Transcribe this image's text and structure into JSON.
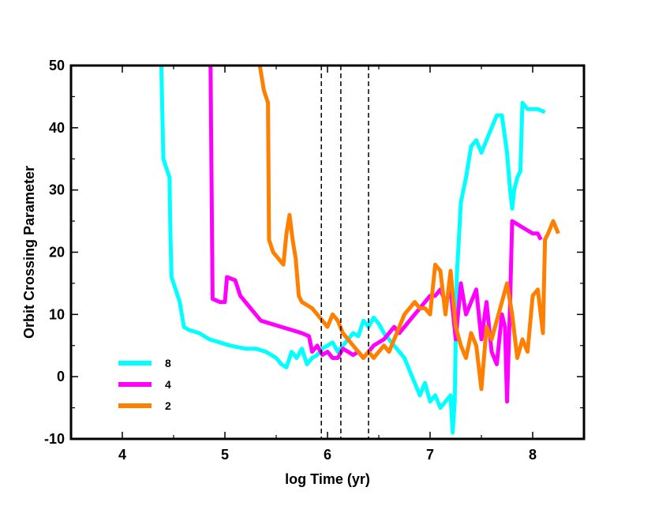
{
  "chart_data": {
    "type": "line",
    "title": "",
    "xlabel": "log Time (yr)",
    "ylabel": "Orbit Crossing Parameter",
    "xlim": [
      3.5,
      8.5
    ],
    "ylim": [
      -10,
      50
    ],
    "x_ticks": [
      4,
      5,
      6,
      7,
      8
    ],
    "y_ticks": [
      -10,
      0,
      10,
      20,
      30,
      40,
      50
    ],
    "x_tick_labels": [
      "4",
      "5",
      "6",
      "7",
      "8"
    ],
    "y_tick_labels": [
      "-10",
      "0",
      "10",
      "20",
      "30",
      "40",
      "50"
    ],
    "grid": false,
    "legend_position": "bottom-left",
    "vlines": [
      5.94,
      6.13,
      6.4
    ],
    "series": [
      {
        "name": "8",
        "color": "#00ffff",
        "points": [
          [
            4.38,
            50
          ],
          [
            4.4,
            35
          ],
          [
            4.44,
            33
          ],
          [
            4.46,
            32
          ],
          [
            4.47,
            22
          ],
          [
            4.48,
            16
          ],
          [
            4.52,
            14
          ],
          [
            4.56,
            12
          ],
          [
            4.6,
            8
          ],
          [
            4.65,
            7.5
          ],
          [
            4.75,
            7
          ],
          [
            4.85,
            6
          ],
          [
            4.95,
            5.5
          ],
          [
            5.05,
            5
          ],
          [
            5.2,
            4.5
          ],
          [
            5.3,
            4.5
          ],
          [
            5.4,
            4
          ],
          [
            5.5,
            3
          ],
          [
            5.55,
            2
          ],
          [
            5.6,
            1.5
          ],
          [
            5.65,
            4
          ],
          [
            5.7,
            3
          ],
          [
            5.75,
            4.5
          ],
          [
            5.8,
            2
          ],
          [
            5.85,
            3
          ],
          [
            5.9,
            3.5
          ],
          [
            5.95,
            4.5
          ],
          [
            6.0,
            5
          ],
          [
            6.05,
            5.5
          ],
          [
            6.1,
            4
          ],
          [
            6.15,
            5
          ],
          [
            6.2,
            6
          ],
          [
            6.25,
            7
          ],
          [
            6.3,
            6.5
          ],
          [
            6.35,
            9
          ],
          [
            6.4,
            8
          ],
          [
            6.45,
            9.5
          ],
          [
            6.5,
            8.5
          ],
          [
            6.55,
            7
          ],
          [
            6.6,
            6
          ],
          [
            6.65,
            5
          ],
          [
            6.7,
            4
          ],
          [
            6.75,
            3
          ],
          [
            6.8,
            1
          ],
          [
            6.85,
            -1
          ],
          [
            6.9,
            -3
          ],
          [
            6.95,
            -1
          ],
          [
            7.0,
            -4
          ],
          [
            7.05,
            -3
          ],
          [
            7.1,
            -5
          ],
          [
            7.15,
            -4
          ],
          [
            7.2,
            -3
          ],
          [
            7.22,
            -9
          ],
          [
            7.24,
            -4
          ],
          [
            7.26,
            16
          ],
          [
            7.28,
            22
          ],
          [
            7.3,
            28
          ],
          [
            7.35,
            32
          ],
          [
            7.4,
            37
          ],
          [
            7.45,
            38
          ],
          [
            7.5,
            36
          ],
          [
            7.55,
            38
          ],
          [
            7.6,
            40
          ],
          [
            7.65,
            42
          ],
          [
            7.7,
            42
          ],
          [
            7.75,
            36
          ],
          [
            7.78,
            30
          ],
          [
            7.8,
            27
          ],
          [
            7.82,
            30
          ],
          [
            7.85,
            32
          ],
          [
            7.88,
            33
          ],
          [
            7.9,
            44
          ],
          [
            7.95,
            43
          ],
          [
            8.0,
            43
          ],
          [
            8.05,
            43
          ],
          [
            8.12,
            42.5
          ]
        ]
      },
      {
        "name": "4",
        "color": "#ff00ff",
        "points": [
          [
            4.86,
            50
          ],
          [
            4.88,
            12.5
          ],
          [
            4.95,
            12
          ],
          [
            5.0,
            12
          ],
          [
            5.02,
            16
          ],
          [
            5.1,
            15.5
          ],
          [
            5.15,
            13
          ],
          [
            5.2,
            12
          ],
          [
            5.25,
            11
          ],
          [
            5.3,
            10
          ],
          [
            5.35,
            9
          ],
          [
            5.45,
            8.5
          ],
          [
            5.55,
            8
          ],
          [
            5.65,
            7.5
          ],
          [
            5.75,
            7
          ],
          [
            5.82,
            6.5
          ],
          [
            5.85,
            4
          ],
          [
            5.9,
            5
          ],
          [
            5.95,
            3.5
          ],
          [
            6.0,
            4
          ],
          [
            6.05,
            3
          ],
          [
            6.1,
            3
          ],
          [
            6.15,
            4.5
          ],
          [
            6.2,
            4
          ],
          [
            6.25,
            3.5
          ],
          [
            6.3,
            4
          ],
          [
            6.35,
            3
          ],
          [
            6.4,
            4
          ],
          [
            6.45,
            5
          ],
          [
            6.5,
            5.5
          ],
          [
            6.55,
            6
          ],
          [
            6.6,
            7
          ],
          [
            6.65,
            8
          ],
          [
            6.7,
            7
          ],
          [
            6.75,
            8
          ],
          [
            6.8,
            9
          ],
          [
            6.85,
            10
          ],
          [
            6.9,
            11
          ],
          [
            6.95,
            12
          ],
          [
            7.0,
            13
          ],
          [
            7.05,
            13
          ],
          [
            7.1,
            14
          ],
          [
            7.15,
            12
          ],
          [
            7.2,
            14
          ],
          [
            7.25,
            6
          ],
          [
            7.3,
            15
          ],
          [
            7.35,
            10
          ],
          [
            7.4,
            12
          ],
          [
            7.45,
            14
          ],
          [
            7.5,
            6
          ],
          [
            7.55,
            12
          ],
          [
            7.6,
            4
          ],
          [
            7.65,
            2
          ],
          [
            7.7,
            10
          ],
          [
            7.73,
            8
          ],
          [
            7.75,
            -4
          ],
          [
            7.78,
            12
          ],
          [
            7.8,
            25
          ],
          [
            7.85,
            24.5
          ],
          [
            7.9,
            24
          ],
          [
            7.95,
            23.5
          ],
          [
            8.0,
            23
          ],
          [
            8.05,
            23
          ],
          [
            8.08,
            22
          ]
        ]
      },
      {
        "name": "2",
        "color": "#ff8000",
        "points": [
          [
            5.34,
            50
          ],
          [
            5.38,
            46
          ],
          [
            5.42,
            44
          ],
          [
            5.43,
            22
          ],
          [
            5.47,
            20
          ],
          [
            5.52,
            19
          ],
          [
            5.57,
            18
          ],
          [
            5.6,
            23
          ],
          [
            5.63,
            26
          ],
          [
            5.66,
            22
          ],
          [
            5.69,
            19
          ],
          [
            5.72,
            13
          ],
          [
            5.75,
            12
          ],
          [
            5.8,
            11.5
          ],
          [
            5.85,
            11
          ],
          [
            5.9,
            10
          ],
          [
            5.95,
            9
          ],
          [
            6.0,
            8
          ],
          [
            6.05,
            10
          ],
          [
            6.1,
            9
          ],
          [
            6.15,
            7
          ],
          [
            6.2,
            6
          ],
          [
            6.25,
            5
          ],
          [
            6.3,
            4
          ],
          [
            6.35,
            3
          ],
          [
            6.4,
            4
          ],
          [
            6.45,
            3
          ],
          [
            6.5,
            4
          ],
          [
            6.55,
            5
          ],
          [
            6.6,
            4
          ],
          [
            6.65,
            6
          ],
          [
            6.7,
            8
          ],
          [
            6.75,
            10
          ],
          [
            6.8,
            11
          ],
          [
            6.85,
            12
          ],
          [
            6.9,
            11
          ],
          [
            6.95,
            11
          ],
          [
            7.0,
            10
          ],
          [
            7.05,
            18
          ],
          [
            7.1,
            17
          ],
          [
            7.15,
            10
          ],
          [
            7.2,
            17
          ],
          [
            7.25,
            8
          ],
          [
            7.3,
            5
          ],
          [
            7.35,
            3
          ],
          [
            7.4,
            7
          ],
          [
            7.45,
            5
          ],
          [
            7.5,
            -2
          ],
          [
            7.55,
            8
          ],
          [
            7.6,
            6
          ],
          [
            7.65,
            9
          ],
          [
            7.7,
            12
          ],
          [
            7.75,
            15
          ],
          [
            7.8,
            10
          ],
          [
            7.85,
            3
          ],
          [
            7.9,
            6
          ],
          [
            7.95,
            4
          ],
          [
            8.0,
            13
          ],
          [
            8.05,
            14
          ],
          [
            8.1,
            7
          ],
          [
            8.12,
            22
          ],
          [
            8.15,
            23
          ],
          [
            8.2,
            25
          ],
          [
            8.25,
            23
          ]
        ]
      }
    ]
  }
}
